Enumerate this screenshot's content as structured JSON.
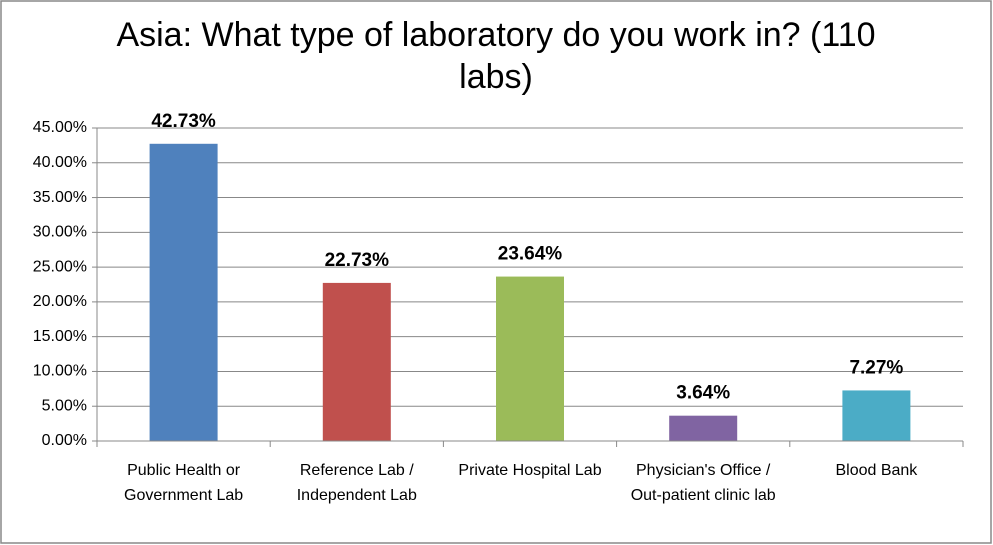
{
  "chart_data": {
    "type": "bar",
    "title": "Asia: What type of laboratory do you work in? (110 labs)",
    "categories": [
      "Public Health or Government Lab",
      "Reference Lab / Independent Lab",
      "Private Hospital Lab",
      "Physician's Office / Out-patient clinic lab",
      "Blood Bank"
    ],
    "values": [
      42.73,
      22.73,
      23.64,
      3.64,
      7.27
    ],
    "value_labels": [
      "42.73%",
      "22.73%",
      "23.64%",
      "3.64%",
      "7.27%"
    ],
    "colors": [
      "#4f81bd",
      "#c0504d",
      "#9bbb59",
      "#8064a2",
      "#4bacc6"
    ],
    "ylim": [
      0,
      45
    ],
    "yticks": [
      {
        "value": 0,
        "label": "0.00%"
      },
      {
        "value": 5,
        "label": "5.00%"
      },
      {
        "value": 10,
        "label": "10.00%"
      },
      {
        "value": 15,
        "label": "15.00%"
      },
      {
        "value": 20,
        "label": "20.00%"
      },
      {
        "value": 25,
        "label": "25.00%"
      },
      {
        "value": 30,
        "label": "30.00%"
      },
      {
        "value": 35,
        "label": "35.00%"
      },
      {
        "value": 40,
        "label": "40.00%"
      },
      {
        "value": 45,
        "label": "45.00%"
      }
    ],
    "grid": true
  }
}
